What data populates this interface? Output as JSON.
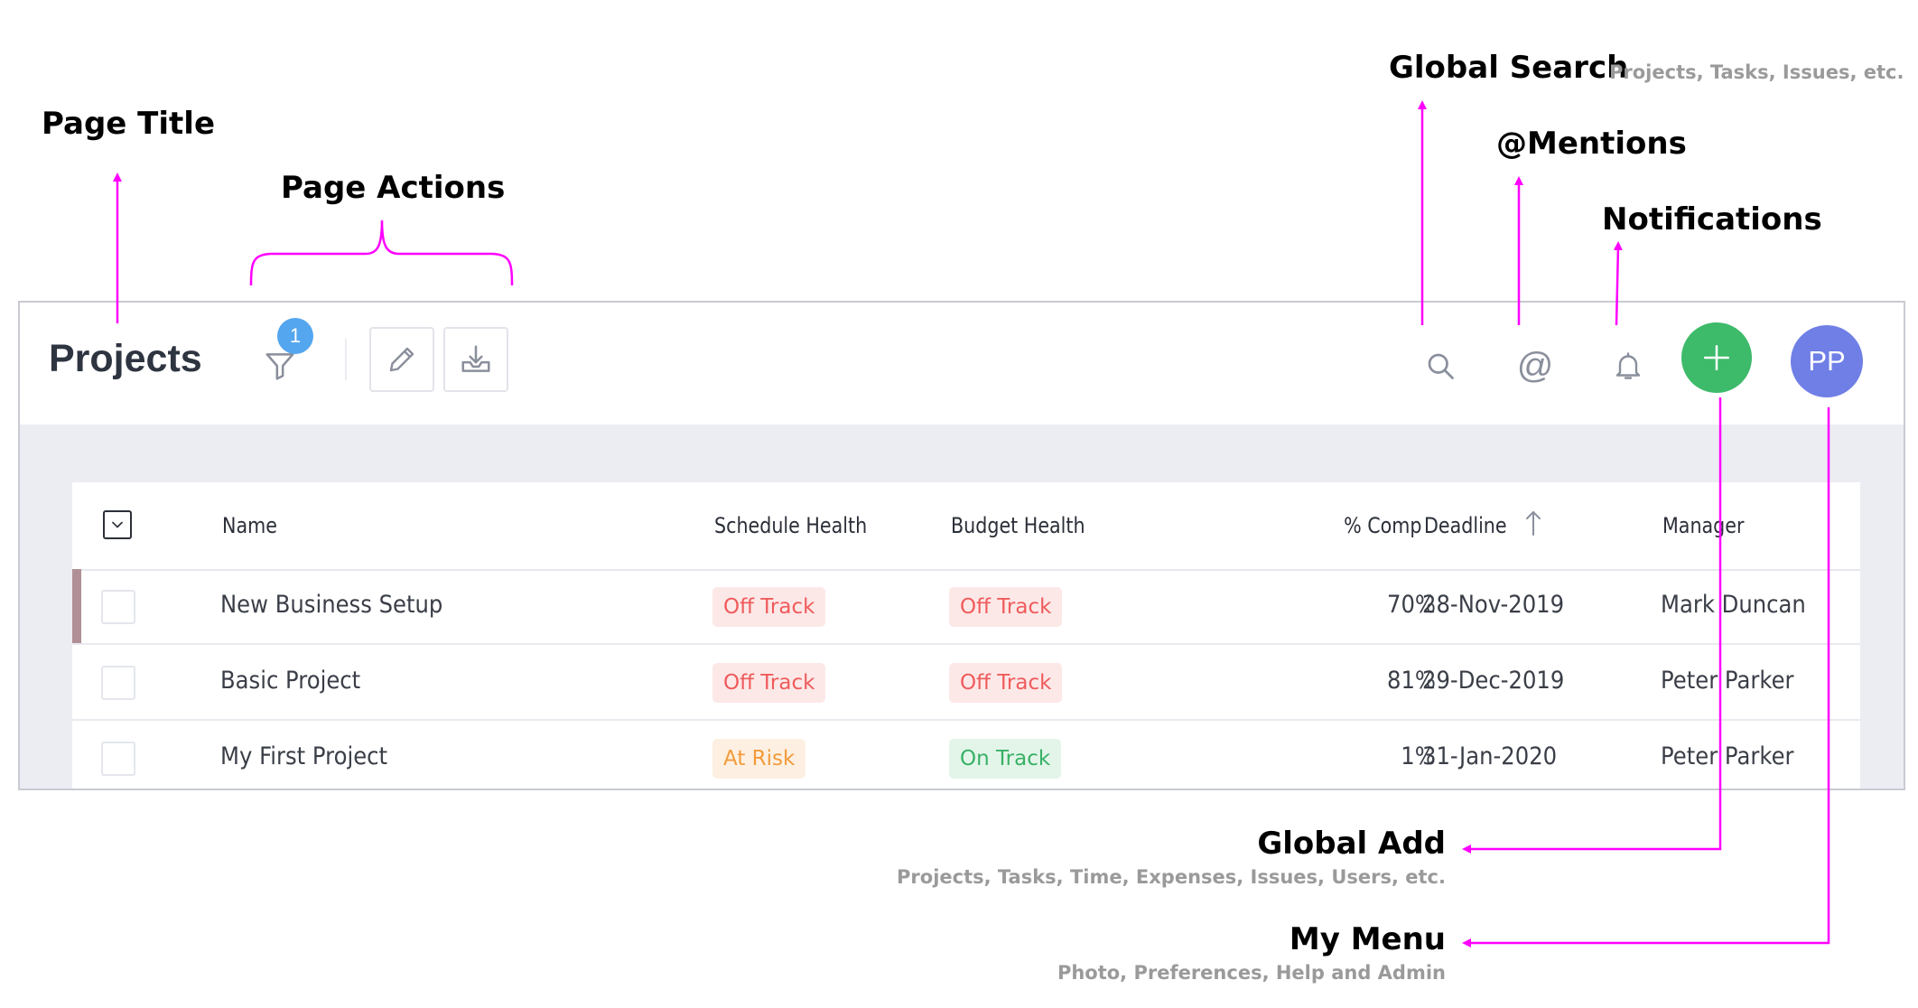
{
  "annotations": {
    "page_title": "Page Title",
    "page_actions": "Page Actions",
    "global_search": "Global Search",
    "global_search_sub": "Projects, Tasks, Issues, etc.",
    "mentions": "@Mentions",
    "notifications": "Notifications",
    "global_add": "Global Add",
    "global_add_sub": "Projects, Tasks, Time, Expenses, Issues, Users, etc.",
    "my_menu": "My Menu",
    "my_menu_sub": "Photo, Preferences, Help and Admin"
  },
  "header": {
    "title": "Projects",
    "filter_badge": "1",
    "mention_symbol": "@",
    "avatar_initials": "PP"
  },
  "icons": {
    "filter": "filter-icon",
    "edit": "pencil-icon",
    "download": "download-tray-icon",
    "search": "search-icon",
    "mentions": "at-sign-icon",
    "notifications": "bell-icon",
    "add": "plus-icon",
    "select_all": "chevron-down-checkbox-icon",
    "sort": "arrow-up-icon"
  },
  "colors": {
    "annotation": "#ff00ff",
    "add_button": "#3dba6a",
    "avatar": "#6f7fe6",
    "badge": "#54a6ee",
    "off_track": "#ef5b5b",
    "at_risk": "#f39a3a",
    "on_track": "#38b166"
  },
  "table": {
    "columns": [
      "Name",
      "Schedule Health",
      "Budget Health",
      "% Comp",
      "Deadline",
      "Manager"
    ],
    "rows": [
      {
        "name": "New Business Setup",
        "schedule": "Off Track",
        "budget": "Off Track",
        "comp": "70%",
        "deadline": "28-Nov-2019",
        "manager": "Mark Duncan"
      },
      {
        "name": "Basic Project",
        "schedule": "Off Track",
        "budget": "Off Track",
        "comp": "81%",
        "deadline": "29-Dec-2019",
        "manager": "Peter Parker"
      },
      {
        "name": "My First Project",
        "schedule": "At Risk",
        "budget": "On Track",
        "comp": "1%",
        "deadline": "31-Jan-2020",
        "manager": "Peter Parker"
      }
    ]
  }
}
